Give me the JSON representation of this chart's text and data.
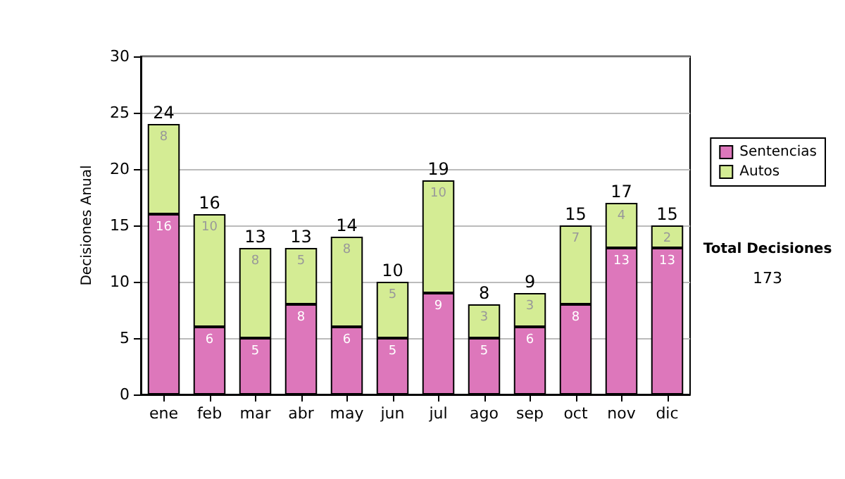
{
  "chart_data": {
    "type": "bar",
    "stacked": true,
    "ylabel": "Decisiones Anual",
    "categories": [
      "ene",
      "feb",
      "mar",
      "abr",
      "may",
      "jun",
      "jul",
      "ago",
      "sep",
      "oct",
      "nov",
      "dic"
    ],
    "series": [
      {
        "name": "Sentencias",
        "color": "#dd77bb",
        "values": [
          16,
          6,
          5,
          8,
          6,
          5,
          9,
          5,
          6,
          8,
          13,
          13
        ]
      },
      {
        "name": "Autos",
        "color": "#d4ec94",
        "values": [
          8,
          10,
          8,
          5,
          8,
          5,
          10,
          3,
          3,
          7,
          4,
          2
        ]
      }
    ],
    "totals": [
      "24",
      "16",
      "13",
      "13",
      "14",
      "10",
      "19",
      "8",
      "9",
      "15",
      "17",
      "15"
    ],
    "data_labels": true,
    "ylim": [
      0,
      30
    ],
    "yticks": [
      0,
      5,
      10,
      15,
      20,
      25,
      30
    ],
    "grid": "y",
    "legend": "right",
    "annotations": [
      "Total Decisiones",
      "173"
    ]
  }
}
